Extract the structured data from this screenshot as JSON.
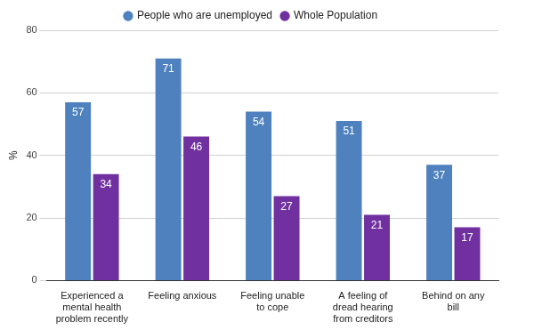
{
  "chart_data": {
    "type": "bar",
    "y_label": "%",
    "categories": [
      "Experienced a mental health problem recently",
      "Feeling anxious",
      "Feeling unable to cope",
      "A feeling of dread hearing from creditors",
      "Behind on any bill"
    ],
    "series": [
      {
        "name": "People who are unemployed",
        "color": "#4e81bd",
        "values": [
          57,
          71,
          54,
          51,
          37
        ]
      },
      {
        "name": "Whole Population",
        "color": "#7030a0",
        "values": [
          34,
          46,
          27,
          21,
          17
        ]
      }
    ],
    "ylim": [
      0,
      80
    ],
    "yticks": [
      0,
      20,
      40,
      60,
      80
    ],
    "grid": true,
    "legend": "top",
    "data_labels": true
  }
}
